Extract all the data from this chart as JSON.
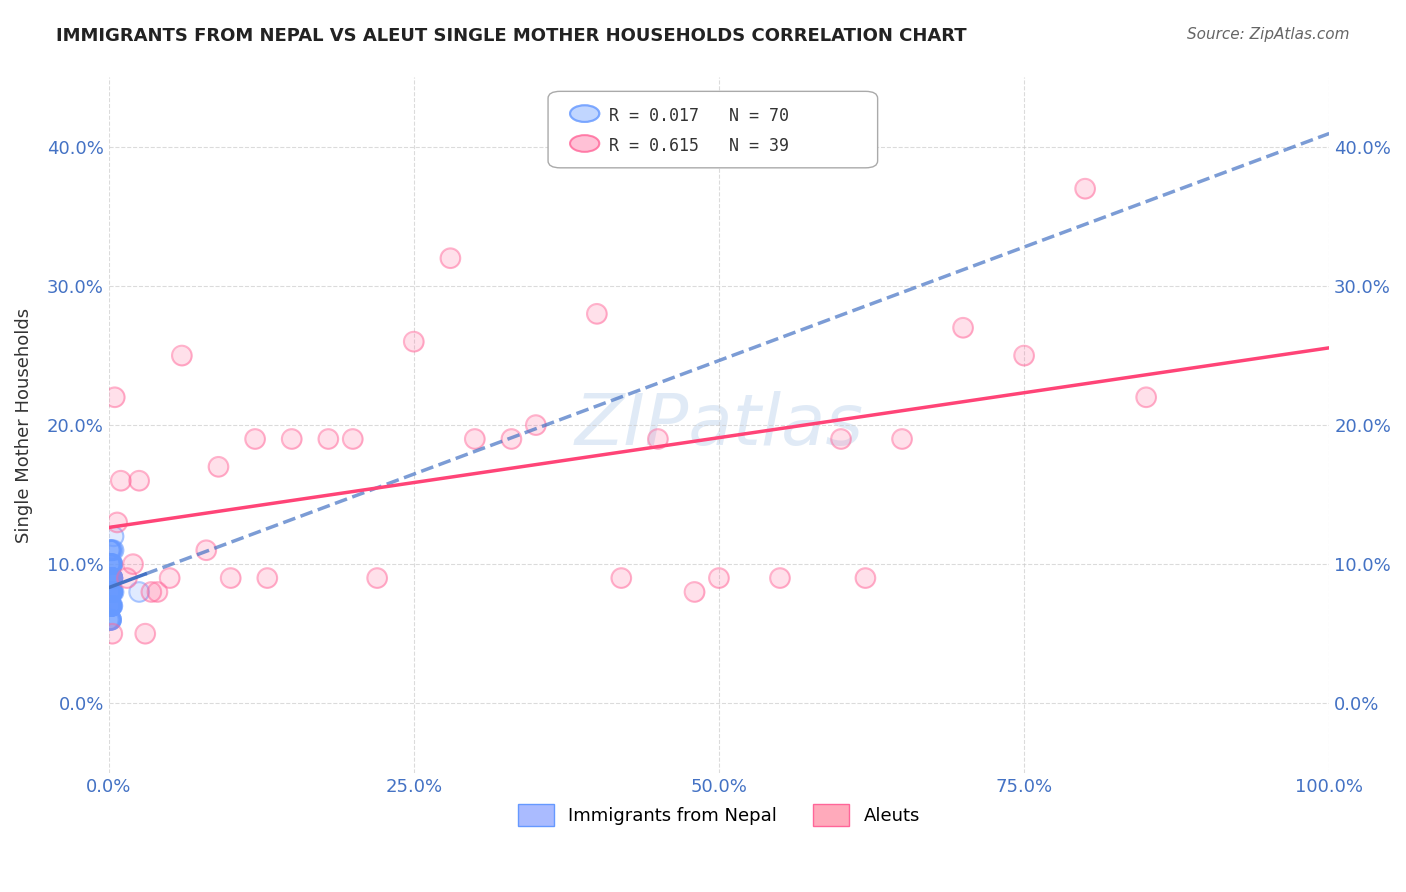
{
  "title": "IMMIGRANTS FROM NEPAL VS ALEUT SINGLE MOTHER HOUSEHOLDS CORRELATION CHART",
  "source": "Source: ZipAtlas.com",
  "xlabel_color": "#4472C4",
  "ylabel": "Single Mother Households",
  "xlim": [
    0,
    1.0
  ],
  "ylim": [
    -0.05,
    0.45
  ],
  "x_ticks": [
    0.0,
    0.25,
    0.5,
    0.75,
    1.0
  ],
  "x_tick_labels": [
    "0.0%",
    "25.0%",
    "50.0%",
    "75.0%",
    "100.0%"
  ],
  "y_ticks": [
    0.0,
    0.1,
    0.2,
    0.3,
    0.4
  ],
  "y_tick_labels": [
    "0.0%",
    "10.0%",
    "20.0%",
    "30.0%",
    "40.0%"
  ],
  "legend_r1": "R = 0.017",
  "legend_n1": "N = 70",
  "legend_r2": "R = 0.615",
  "legend_n2": "N = 39",
  "blue_color": "#6699FF",
  "pink_color": "#FF6699",
  "trendline_blue_color": "#4472C4",
  "trendline_pink_color": "#FF4477",
  "watermark": "ZIPatlas",
  "nepal_x": [
    0.002,
    0.001,
    0.003,
    0.0,
    0.001,
    0.002,
    0.001,
    0.003,
    0.004,
    0.002,
    0.001,
    0.002,
    0.001,
    0.003,
    0.002,
    0.001,
    0.002,
    0.003,
    0.001,
    0.002,
    0.003,
    0.004,
    0.001,
    0.002,
    0.003,
    0.002,
    0.001,
    0.003,
    0.002,
    0.001,
    0.002,
    0.001,
    0.003,
    0.002,
    0.004,
    0.001,
    0.002,
    0.003,
    0.001,
    0.002,
    0.002,
    0.003,
    0.001,
    0.002,
    0.001,
    0.003,
    0.002,
    0.001,
    0.003,
    0.002,
    0.001,
    0.002,
    0.003,
    0.001,
    0.002,
    0.003,
    0.001,
    0.025,
    0.002,
    0.001,
    0.003,
    0.002,
    0.001,
    0.002,
    0.003,
    0.001,
    0.002,
    0.001,
    0.002,
    0.003
  ],
  "nepal_y": [
    0.08,
    0.07,
    0.09,
    0.06,
    0.1,
    0.08,
    0.11,
    0.07,
    0.12,
    0.09,
    0.06,
    0.08,
    0.07,
    0.09,
    0.1,
    0.08,
    0.11,
    0.07,
    0.09,
    0.08,
    0.1,
    0.11,
    0.07,
    0.06,
    0.09,
    0.08,
    0.07,
    0.1,
    0.09,
    0.08,
    0.07,
    0.06,
    0.09,
    0.1,
    0.08,
    0.11,
    0.07,
    0.09,
    0.08,
    0.07,
    0.06,
    0.08,
    0.09,
    0.07,
    0.1,
    0.08,
    0.09,
    0.07,
    0.11,
    0.08,
    0.09,
    0.07,
    0.1,
    0.08,
    0.07,
    0.09,
    0.1,
    0.08,
    0.07,
    0.09,
    0.08,
    0.11,
    0.07,
    0.06,
    0.09,
    0.08,
    0.1,
    0.07,
    0.09,
    0.08
  ],
  "aleut_x": [
    0.005,
    0.01,
    0.02,
    0.03,
    0.04,
    0.05,
    0.08,
    0.1,
    0.12,
    0.15,
    0.18,
    0.2,
    0.25,
    0.3,
    0.35,
    0.4,
    0.45,
    0.5,
    0.55,
    0.6,
    0.65,
    0.7,
    0.75,
    0.8,
    0.85,
    0.003,
    0.007,
    0.015,
    0.025,
    0.035,
    0.06,
    0.09,
    0.13,
    0.22,
    0.28,
    0.33,
    0.42,
    0.48,
    0.62
  ],
  "aleut_y": [
    0.22,
    0.16,
    0.1,
    0.05,
    0.08,
    0.09,
    0.11,
    0.09,
    0.19,
    0.19,
    0.19,
    0.19,
    0.26,
    0.19,
    0.2,
    0.28,
    0.19,
    0.09,
    0.09,
    0.19,
    0.19,
    0.27,
    0.25,
    0.37,
    0.22,
    0.05,
    0.13,
    0.09,
    0.16,
    0.08,
    0.25,
    0.17,
    0.09,
    0.09,
    0.32,
    0.19,
    0.09,
    0.08,
    0.09
  ]
}
